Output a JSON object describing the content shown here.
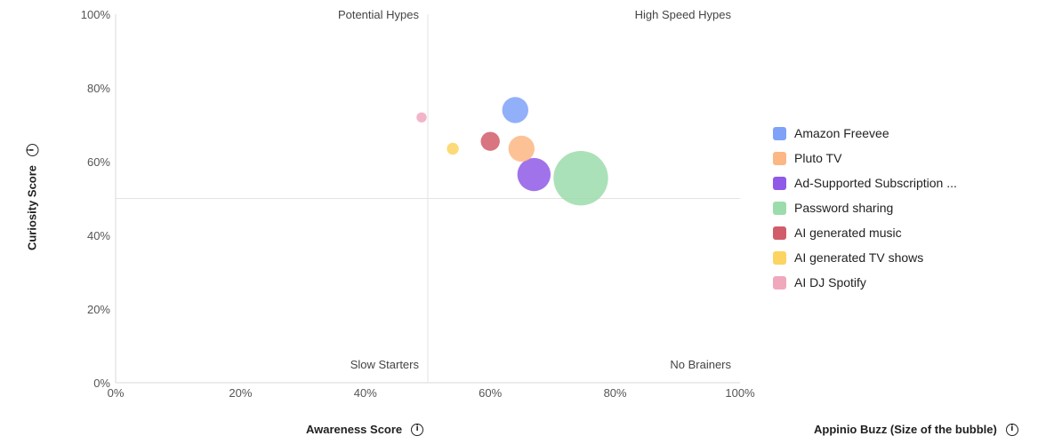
{
  "chart_data": {
    "type": "scatter",
    "subtype": "bubble",
    "xlabel": "Awareness Score",
    "ylabel": "Curiosity Score",
    "size_label": "Appinio Buzz (Size of the bubble)",
    "xlim": [
      0,
      100
    ],
    "ylim": [
      0,
      100
    ],
    "x_ticks": [
      "0%",
      "20%",
      "40%",
      "60%",
      "80%",
      "100%"
    ],
    "y_ticks": [
      "0%",
      "20%",
      "40%",
      "60%",
      "80%",
      "100%"
    ],
    "midlines": {
      "x": 50,
      "y": 50
    },
    "quadrant_labels": {
      "top_left": "Potential Hypes",
      "top_right": "High Speed Hypes",
      "bottom_left": "Slow Starters",
      "bottom_right": "No Brainers"
    },
    "legend_position": "right",
    "series": [
      {
        "name": "Amazon Freevee",
        "color": "#7fa2f8",
        "x": 64,
        "y": 74,
        "size": 14
      },
      {
        "name": "Pluto TV",
        "color": "#fbb784",
        "x": 65,
        "y": 63.5,
        "size": 14
      },
      {
        "name": "Ad-Supported Subscription ...",
        "color": "#8f5ae8",
        "x": 67,
        "y": 56.5,
        "size": 18
      },
      {
        "name": "Password sharing",
        "color": "#9cdcac",
        "x": 74.5,
        "y": 55.5,
        "size": 30
      },
      {
        "name": "AI generated music",
        "color": "#d15d6a",
        "x": 60,
        "y": 65.5,
        "size": 10
      },
      {
        "name": "AI generated TV shows",
        "color": "#fcd462",
        "x": 54,
        "y": 63.5,
        "size": 6
      },
      {
        "name": "AI DJ Spotify",
        "color": "#f0a8bd",
        "x": 49,
        "y": 72,
        "size": 5
      }
    ]
  }
}
